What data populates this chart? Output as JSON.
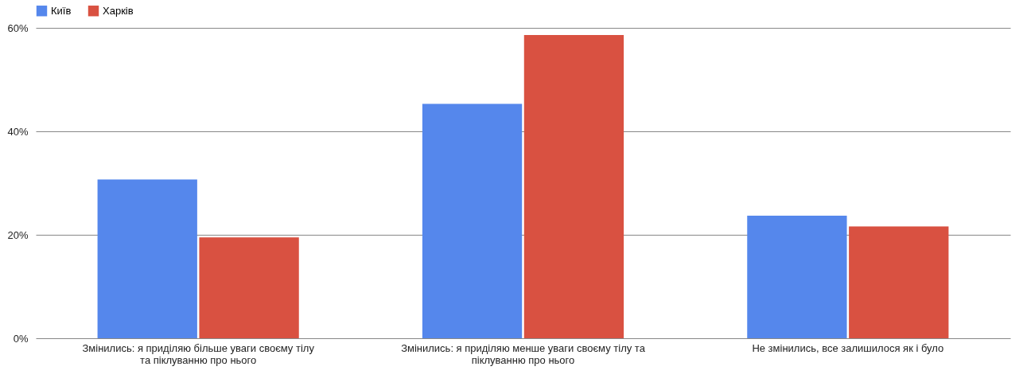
{
  "chart_data": {
    "type": "bar",
    "categories": [
      "Змінились: я приділяю більше уваги своєму тілу та піклуванню про нього",
      "Змінились: я приділяю менше уваги своєму тілу та піклуванню про нього",
      "Не змінились, все залишилося як і було"
    ],
    "series": [
      {
        "name": "Київ",
        "color": "#5587ec",
        "values": [
          30.7,
          45.3,
          23.7
        ]
      },
      {
        "name": "Харків",
        "color": "#d95141",
        "values": [
          19.5,
          58.6,
          21.6
        ]
      }
    ],
    "ylim": [
      0,
      60
    ],
    "yticks": [
      {
        "value": 0,
        "label": "0%"
      },
      {
        "value": 20,
        "label": "20%"
      },
      {
        "value": 40,
        "label": "40%"
      },
      {
        "value": 60,
        "label": "60%"
      }
    ],
    "grid": "y",
    "legend": "top"
  }
}
